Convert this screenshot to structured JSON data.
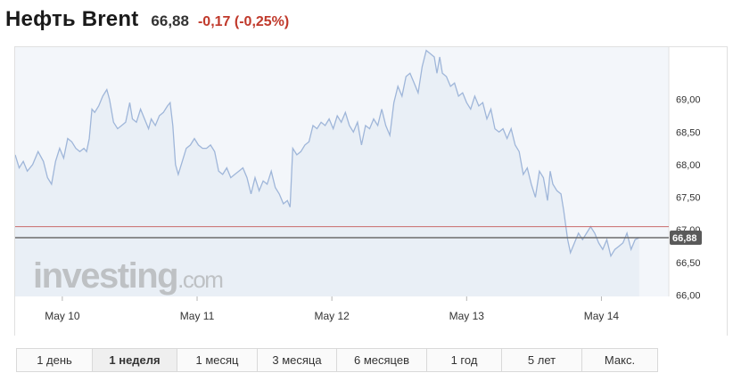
{
  "header": {
    "title": "Нефть Brent",
    "price": "66,88",
    "change": "-0,17 (-0,25%)",
    "change_color": "#c0392b"
  },
  "watermark": {
    "text": "investing",
    "suffix": ".com"
  },
  "timeframes": {
    "items": [
      {
        "label": "1 день"
      },
      {
        "label": "1 неделя",
        "active": true
      },
      {
        "label": "1 месяц"
      },
      {
        "label": "3 месяца"
      },
      {
        "label": "6 месяцев"
      },
      {
        "label": "1 год"
      },
      {
        "label": "5 лет"
      },
      {
        "label": "Макс."
      }
    ]
  },
  "chart_data": {
    "type": "area",
    "x_tick_labels": [
      "May 10",
      "May 11",
      "May 12",
      "May 13",
      "May 14"
    ],
    "x_tick_positions": [
      1,
      2,
      3,
      4,
      5
    ],
    "xlim": [
      0.65,
      5.5
    ],
    "y_tick_labels": [
      "66,00",
      "66,50",
      "67,00",
      "67,50",
      "68,00",
      "68,50",
      "69,00"
    ],
    "y_ticks": [
      66.0,
      66.5,
      67.0,
      67.5,
      68.0,
      68.5,
      69.0
    ],
    "ylim": [
      65.98,
      69.8
    ],
    "current_value": 66.88,
    "current_label": "66,88",
    "reference_value": 67.05,
    "line_color": "#9fb6d9",
    "fill_color": "#e9eff6",
    "current_line_color": "#6d6d6d",
    "reference_line_color": "#c96b6b",
    "grid": false,
    "series": [
      {
        "values": [
          [
            0.65,
            68.15
          ],
          [
            0.68,
            67.95
          ],
          [
            0.71,
            68.05
          ],
          [
            0.74,
            67.9
          ],
          [
            0.78,
            68.0
          ],
          [
            0.82,
            68.2
          ],
          [
            0.86,
            68.05
          ],
          [
            0.89,
            67.8
          ],
          [
            0.92,
            67.7
          ],
          [
            0.95,
            68.05
          ],
          [
            0.98,
            68.25
          ],
          [
            1.01,
            68.1
          ],
          [
            1.04,
            68.4
          ],
          [
            1.07,
            68.35
          ],
          [
            1.1,
            68.25
          ],
          [
            1.13,
            68.2
          ],
          [
            1.16,
            68.25
          ],
          [
            1.18,
            68.2
          ],
          [
            1.2,
            68.4
          ],
          [
            1.22,
            68.85
          ],
          [
            1.24,
            68.8
          ],
          [
            1.27,
            68.9
          ],
          [
            1.3,
            69.05
          ],
          [
            1.33,
            69.15
          ],
          [
            1.35,
            69.0
          ],
          [
            1.38,
            68.65
          ],
          [
            1.41,
            68.55
          ],
          [
            1.44,
            68.6
          ],
          [
            1.47,
            68.65
          ],
          [
            1.5,
            68.95
          ],
          [
            1.52,
            68.7
          ],
          [
            1.55,
            68.65
          ],
          [
            1.58,
            68.85
          ],
          [
            1.61,
            68.7
          ],
          [
            1.64,
            68.55
          ],
          [
            1.66,
            68.7
          ],
          [
            1.69,
            68.6
          ],
          [
            1.72,
            68.75
          ],
          [
            1.75,
            68.8
          ],
          [
            1.78,
            68.9
          ],
          [
            1.8,
            68.95
          ],
          [
            1.82,
            68.6
          ],
          [
            1.84,
            68.0
          ],
          [
            1.86,
            67.85
          ],
          [
            1.89,
            68.05
          ],
          [
            1.92,
            68.25
          ],
          [
            1.95,
            68.3
          ],
          [
            1.98,
            68.4
          ],
          [
            2.01,
            68.3
          ],
          [
            2.04,
            68.25
          ],
          [
            2.07,
            68.25
          ],
          [
            2.1,
            68.3
          ],
          [
            2.13,
            68.2
          ],
          [
            2.16,
            67.9
          ],
          [
            2.19,
            67.85
          ],
          [
            2.22,
            67.95
          ],
          [
            2.25,
            67.8
          ],
          [
            2.28,
            67.85
          ],
          [
            2.31,
            67.9
          ],
          [
            2.34,
            67.95
          ],
          [
            2.37,
            67.8
          ],
          [
            2.4,
            67.55
          ],
          [
            2.43,
            67.8
          ],
          [
            2.46,
            67.6
          ],
          [
            2.49,
            67.75
          ],
          [
            2.52,
            67.7
          ],
          [
            2.55,
            67.9
          ],
          [
            2.58,
            67.65
          ],
          [
            2.61,
            67.55
          ],
          [
            2.64,
            67.4
          ],
          [
            2.67,
            67.45
          ],
          [
            2.69,
            67.35
          ],
          [
            2.71,
            68.25
          ],
          [
            2.74,
            68.15
          ],
          [
            2.77,
            68.2
          ],
          [
            2.8,
            68.3
          ],
          [
            2.83,
            68.35
          ],
          [
            2.86,
            68.6
          ],
          [
            2.89,
            68.55
          ],
          [
            2.92,
            68.65
          ],
          [
            2.95,
            68.6
          ],
          [
            2.98,
            68.7
          ],
          [
            3.01,
            68.55
          ],
          [
            3.04,
            68.75
          ],
          [
            3.07,
            68.65
          ],
          [
            3.1,
            68.8
          ],
          [
            3.13,
            68.6
          ],
          [
            3.16,
            68.5
          ],
          [
            3.19,
            68.65
          ],
          [
            3.22,
            68.3
          ],
          [
            3.25,
            68.6
          ],
          [
            3.28,
            68.55
          ],
          [
            3.31,
            68.7
          ],
          [
            3.34,
            68.6
          ],
          [
            3.37,
            68.85
          ],
          [
            3.4,
            68.6
          ],
          [
            3.43,
            68.45
          ],
          [
            3.46,
            68.95
          ],
          [
            3.49,
            69.2
          ],
          [
            3.52,
            69.05
          ],
          [
            3.55,
            69.35
          ],
          [
            3.58,
            69.4
          ],
          [
            3.61,
            69.25
          ],
          [
            3.64,
            69.1
          ],
          [
            3.67,
            69.5
          ],
          [
            3.7,
            69.75
          ],
          [
            3.73,
            69.7
          ],
          [
            3.76,
            69.65
          ],
          [
            3.78,
            69.4
          ],
          [
            3.8,
            69.65
          ],
          [
            3.82,
            69.4
          ],
          [
            3.85,
            69.35
          ],
          [
            3.88,
            69.2
          ],
          [
            3.91,
            69.25
          ],
          [
            3.94,
            69.05
          ],
          [
            3.97,
            69.1
          ],
          [
            4.0,
            68.95
          ],
          [
            4.03,
            68.85
          ],
          [
            4.06,
            69.05
          ],
          [
            4.09,
            68.9
          ],
          [
            4.12,
            68.95
          ],
          [
            4.15,
            68.7
          ],
          [
            4.18,
            68.85
          ],
          [
            4.21,
            68.55
          ],
          [
            4.24,
            68.5
          ],
          [
            4.27,
            68.55
          ],
          [
            4.3,
            68.4
          ],
          [
            4.33,
            68.55
          ],
          [
            4.36,
            68.3
          ],
          [
            4.39,
            68.2
          ],
          [
            4.42,
            67.85
          ],
          [
            4.45,
            67.95
          ],
          [
            4.48,
            67.7
          ],
          [
            4.51,
            67.5
          ],
          [
            4.54,
            67.9
          ],
          [
            4.57,
            67.8
          ],
          [
            4.6,
            67.45
          ],
          [
            4.62,
            67.9
          ],
          [
            4.64,
            67.7
          ],
          [
            4.67,
            67.6
          ],
          [
            4.7,
            67.55
          ],
          [
            4.72,
            67.3
          ],
          [
            4.75,
            66.85
          ],
          [
            4.77,
            66.65
          ],
          [
            4.8,
            66.8
          ],
          [
            4.83,
            66.95
          ],
          [
            4.86,
            66.85
          ],
          [
            4.89,
            66.95
          ],
          [
            4.92,
            67.05
          ],
          [
            4.95,
            66.95
          ],
          [
            4.98,
            66.8
          ],
          [
            5.01,
            66.7
          ],
          [
            5.04,
            66.85
          ],
          [
            5.07,
            66.6
          ],
          [
            5.1,
            66.7
          ],
          [
            5.13,
            66.75
          ],
          [
            5.16,
            66.8
          ],
          [
            5.19,
            66.95
          ],
          [
            5.22,
            66.7
          ],
          [
            5.25,
            66.85
          ],
          [
            5.28,
            66.88
          ]
        ]
      }
    ]
  }
}
